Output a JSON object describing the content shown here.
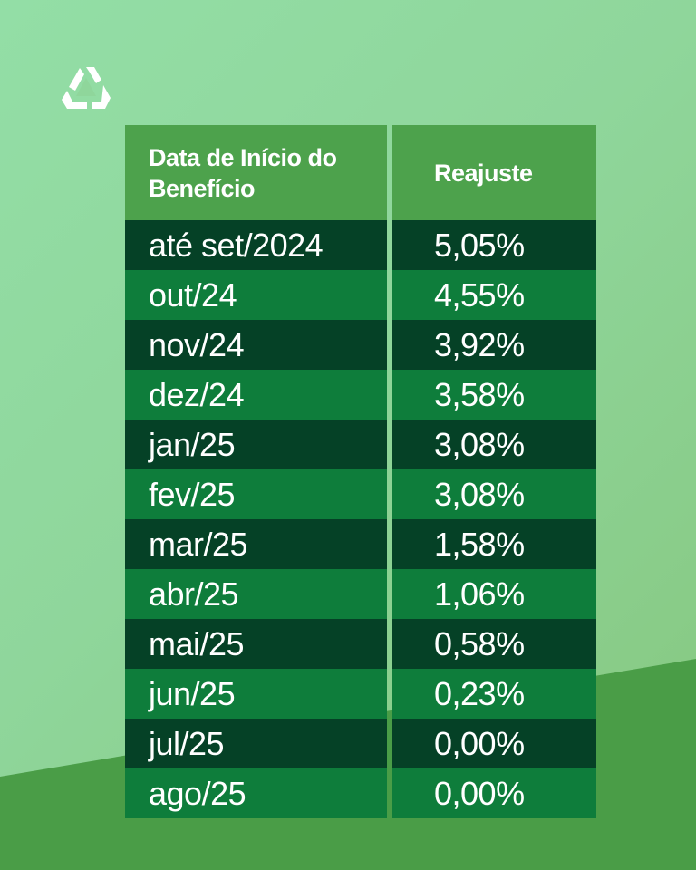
{
  "table": {
    "header_left": "Data de Início do Benefício",
    "header_right": "Reajuste",
    "rows": [
      {
        "date": "até set/2024",
        "value": "5,05%"
      },
      {
        "date": "out/24",
        "value": "4,55%"
      },
      {
        "date": "nov/24",
        "value": "3,92%"
      },
      {
        "date": "dez/24",
        "value": "3,58%"
      },
      {
        "date": "jan/25",
        "value": "3,08%"
      },
      {
        "date": "fev/25",
        "value": "3,08%"
      },
      {
        "date": "mar/25",
        "value": "1,58%"
      },
      {
        "date": "abr/25",
        "value": "1,06%"
      },
      {
        "date": "mai/25",
        "value": "0,58%"
      },
      {
        "date": "jun/25",
        "value": "0,23%"
      },
      {
        "date": "jul/25",
        "value": "0,00%"
      },
      {
        "date": "ago/25",
        "value": "0,00%"
      }
    ]
  },
  "colors": {
    "header_bg": "#4da24c",
    "row_dark": "#054126",
    "row_light": "#0e7d3b"
  },
  "icons": {
    "logo": "recycle-triangle-logo-icon"
  }
}
